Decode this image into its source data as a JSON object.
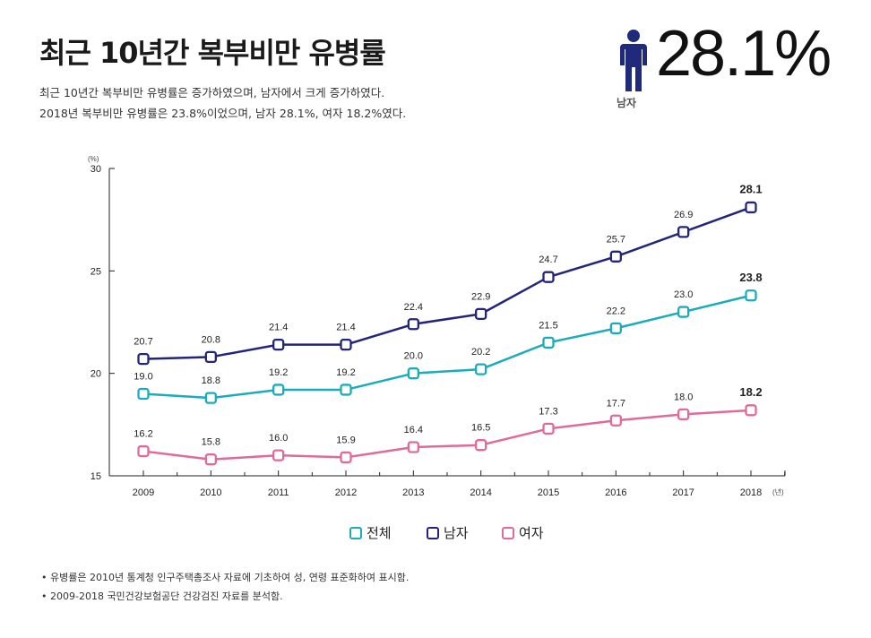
{
  "header": {
    "title": "최근 10년간 복부비만 유병률",
    "description_lines": [
      "최근 10년간 복부비만 유병률은 증가하였으며, 남자에서 크게 증가하였다.",
      "2018년 복부비만 유병률은 23.8%이었으며, 남자 28.1%, 여자 18.2%였다."
    ]
  },
  "hero": {
    "icon": "person-icon",
    "label": "남자",
    "value": "28.1%",
    "color": "#1f2a7a"
  },
  "notes": [
    "• 유병률은 2010년 통계청 인구주택총조사 자료에 기초하여 성, 연령 표준화하여 표시함.",
    "• 2009-2018 국민건강보험공단 건강검진 자료를 분석함."
  ],
  "chart_data": {
    "type": "line",
    "title": "",
    "xlabel": "(년)",
    "ylabel": "(%)",
    "categories": [
      "2009",
      "2010",
      "2011",
      "2012",
      "2013",
      "2014",
      "2015",
      "2016",
      "2017",
      "2018"
    ],
    "ylim": [
      15,
      30
    ],
    "yticks": [
      15,
      20,
      25,
      30
    ],
    "grid": false,
    "legend_position": "bottom-center",
    "series": [
      {
        "name": "전체",
        "color": "#1aacb8",
        "values": [
          19.0,
          18.8,
          19.2,
          19.2,
          20.0,
          20.2,
          21.5,
          22.2,
          23.0,
          23.8
        ],
        "labels": [
          "19.0",
          "18.8",
          "19.2",
          "19.2",
          "20.0",
          "20.2",
          "21.5",
          "22.2",
          "23.0",
          "23.8"
        ]
      },
      {
        "name": "남자",
        "color": "#23247a",
        "values": [
          20.7,
          20.8,
          21.4,
          21.4,
          22.4,
          22.9,
          24.7,
          25.7,
          26.9,
          28.1
        ],
        "labels": [
          "20.7",
          "20.8",
          "21.4",
          "21.4",
          "22.4",
          "22.9",
          "24.7",
          "25.7",
          "26.9",
          "28.1"
        ]
      },
      {
        "name": "여자",
        "color": "#e06a9a",
        "values": [
          16.2,
          15.8,
          16.0,
          15.9,
          16.4,
          16.5,
          17.3,
          17.7,
          18.0,
          18.2
        ],
        "labels": [
          "16.2",
          "15.8",
          "16.0",
          "15.9",
          "16.4",
          "16.5",
          "17.3",
          "17.7",
          "18.0",
          "18.2"
        ]
      }
    ]
  }
}
